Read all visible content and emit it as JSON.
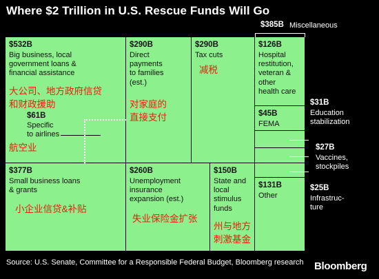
{
  "title": "Where $2 Trillion in U.S. Rescue Funds Will Go",
  "source": "Source: U.S. Senate, Committee for a Responsible Federal Budget, Bloomberg research",
  "brand": "Bloomberg",
  "colors": {
    "cell": "#8cf08c",
    "chinese": "#ee1c0d",
    "background": "#000000"
  },
  "chart_data": {
    "type": "treemap",
    "title": "Where $2 Trillion in U.S. Rescue Funds Will Go",
    "unit": "USD billions",
    "items": [
      {
        "key": "big_business",
        "value_label": "$532B",
        "value": 532,
        "label": "Big business, local\ngovernment loans &\nfinancial assistance",
        "chinese": "大公司、地方政府信贷\n和财政援助"
      },
      {
        "key": "airlines",
        "value_label": "$61B",
        "value": 61,
        "label": "Specific\nto airlines",
        "chinese": "航空业",
        "parent": "big_business"
      },
      {
        "key": "direct_payments",
        "value_label": "$290B",
        "value": 290,
        "label": "Direct\npayments\nto families\n(est.)",
        "chinese": "对家庭的\n直接支付"
      },
      {
        "key": "tax_cuts",
        "value_label": "$290B",
        "value": 290,
        "label": "Tax cuts",
        "chinese": "减税"
      },
      {
        "key": "small_business",
        "value_label": "$377B",
        "value": 377,
        "label": "Small business loans\n& grants",
        "chinese": "小企业信贷&补贴"
      },
      {
        "key": "unemployment",
        "value_label": "$260B",
        "value": 260,
        "label": "Unemployment\ninsurance\nexpansion (est.)",
        "chinese": "失业保险金扩张"
      },
      {
        "key": "state_local",
        "value_label": "$150B",
        "value": 150,
        "label": "State and\nlocal\nstimulus\nfunds",
        "chinese": "州与地方\n刺激基金"
      },
      {
        "key": "miscellaneous",
        "value_label": "$385B",
        "value": 385,
        "label": "Miscellaneous",
        "group": true
      },
      {
        "key": "hospital",
        "value_label": "$126B",
        "value": 126,
        "label": "Hospital\nrestitution,\nveteran &\nother\nhealth care",
        "parent": "miscellaneous"
      },
      {
        "key": "fema",
        "value_label": "$45B",
        "value": 45,
        "label": "FEMA",
        "parent": "miscellaneous"
      },
      {
        "key": "education",
        "value_label": "$31B",
        "value": 31,
        "label": "Education\nstabilization",
        "parent": "miscellaneous"
      },
      {
        "key": "vaccines",
        "value_label": "$27B",
        "value": 27,
        "label": "Vaccines,\nstockpiles",
        "parent": "miscellaneous"
      },
      {
        "key": "infrastructure",
        "value_label": "$25B",
        "value": 25,
        "label": "Infrastruc-\nture",
        "parent": "miscellaneous"
      },
      {
        "key": "other_misc",
        "value_label": "$131B",
        "value": 131,
        "label": "Other",
        "parent": "miscellaneous"
      }
    ]
  }
}
